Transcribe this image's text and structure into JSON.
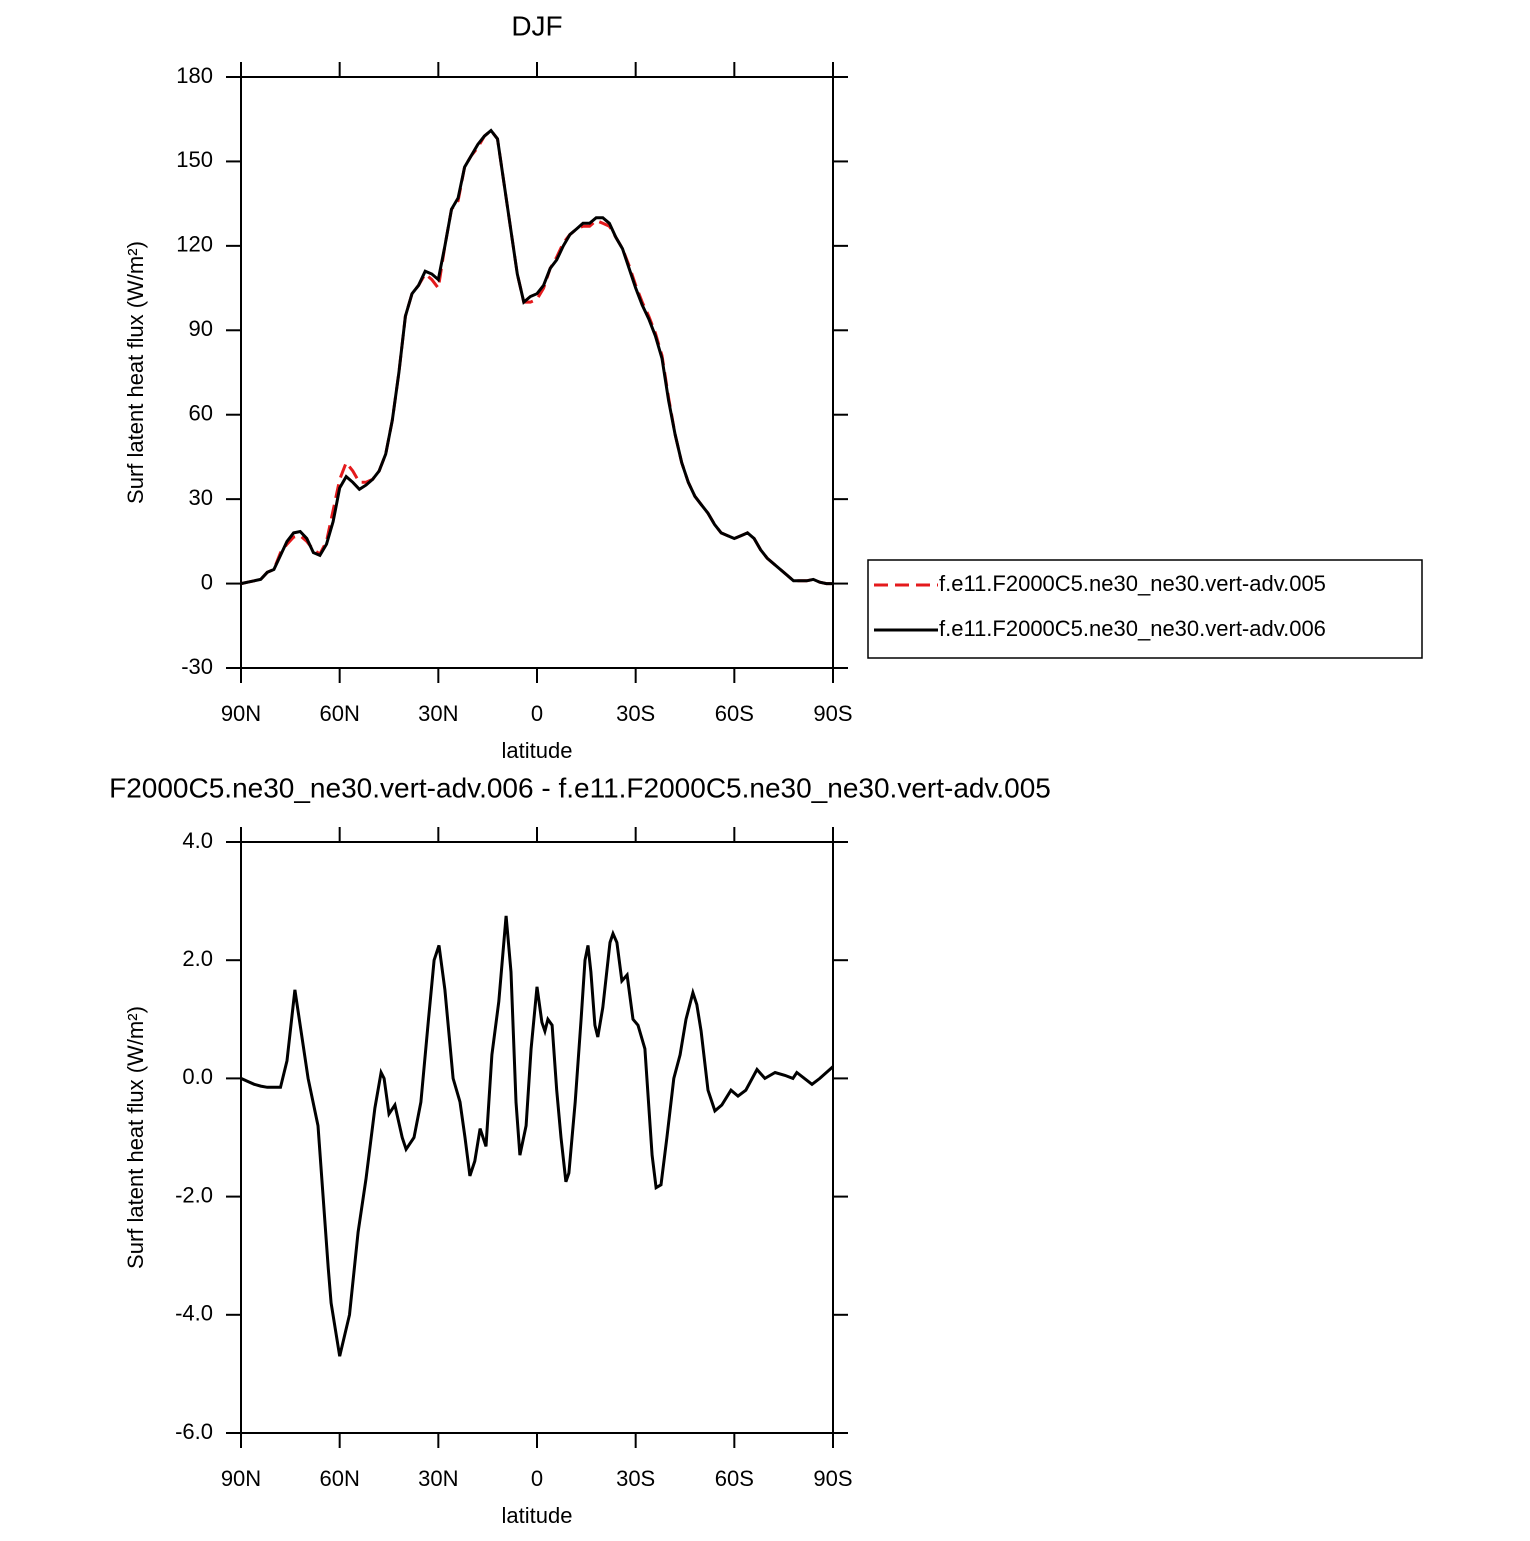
{
  "chart_data": [
    {
      "type": "line",
      "title": "DJF",
      "xlabel": "latitude",
      "ylabel": "Surf latent heat flux (W/m²)",
      "xlim": [
        90,
        -90
      ],
      "ylim": [
        -30,
        180
      ],
      "xticks": [
        {
          "value": 90,
          "label": "90N"
        },
        {
          "value": 60,
          "label": "60N"
        },
        {
          "value": 30,
          "label": "30N"
        },
        0,
        {
          "value": -30,
          "label": "30S"
        },
        {
          "value": -60,
          "label": "60S"
        },
        {
          "value": -90,
          "label": "90S"
        }
      ],
      "yticks": [
        -30,
        0,
        30,
        60,
        90,
        120,
        150,
        180
      ],
      "legend": "right",
      "x": [
        90,
        88,
        86,
        84,
        82,
        80,
        78,
        76,
        74,
        72,
        70,
        68,
        66,
        64,
        62,
        60,
        58,
        56,
        54,
        52,
        50,
        48,
        46,
        44,
        42,
        40,
        38,
        36,
        34,
        32,
        30,
        28,
        26,
        24,
        22,
        20,
        18,
        16,
        14,
        12,
        10,
        8,
        6,
        4,
        2,
        0,
        -2,
        -4,
        -6,
        -8,
        -10,
        -12,
        -14,
        -16,
        -18,
        -20,
        -22,
        -24,
        -26,
        -28,
        -30,
        -32,
        -34,
        -36,
        -38,
        -40,
        -42,
        -44,
        -46,
        -48,
        -50,
        -52,
        -54,
        -56,
        -58,
        -60,
        -62,
        -64,
        -66,
        -68,
        -70,
        -72,
        -74,
        -76,
        -78,
        -80,
        -82,
        -84,
        -86,
        -88,
        -90
      ],
      "series": [
        {
          "name": "f.e11.F2000C5.ne30_ne30.vert-adv.005",
          "color": "#e41a1c",
          "dashed": true,
          "values": [
            0,
            0.5,
            1,
            1.5,
            4,
            5,
            11,
            14,
            16.5,
            17,
            15,
            12,
            10.5,
            15,
            26,
            37,
            43,
            40,
            36,
            36,
            37,
            40,
            46,
            58,
            75,
            95,
            103,
            106,
            110,
            108,
            105,
            120,
            133,
            136,
            148,
            152,
            155,
            159,
            161,
            158,
            142,
            126,
            110,
            100,
            100,
            101,
            105,
            112,
            116,
            121,
            124,
            126,
            127,
            127,
            129,
            128,
            127,
            123,
            119,
            113,
            106,
            100,
            95,
            89,
            81,
            66,
            53,
            43,
            36,
            31,
            28,
            25,
            21,
            18,
            17,
            16,
            17,
            18,
            16,
            12,
            9,
            7,
            5,
            3,
            1,
            1,
            1,
            1.5,
            0.5,
            0,
            0
          ]
        },
        {
          "name": "f.e11.F2000C5.ne30_ne30.vert-adv.006",
          "color": "#000000",
          "dashed": false,
          "values": [
            0,
            0.5,
            1,
            1.5,
            4,
            5,
            10,
            15,
            18,
            18.5,
            16,
            11,
            10,
            14,
            22,
            34,
            38,
            36,
            33.5,
            35,
            37,
            40,
            46,
            58,
            75,
            95,
            103,
            106,
            111,
            110,
            108,
            120,
            133,
            137,
            148,
            152,
            156,
            159,
            161,
            158,
            142,
            126,
            110,
            100,
            102,
            103,
            106,
            112,
            115,
            120,
            124,
            126,
            128,
            128,
            130,
            130,
            128,
            123,
            119,
            112,
            105,
            99,
            94,
            88,
            80,
            65,
            53,
            43,
            36,
            31,
            28,
            25,
            21,
            18,
            17,
            16,
            17,
            18,
            16,
            12,
            9,
            7,
            5,
            3,
            1,
            1,
            1,
            1.5,
            0.5,
            0,
            0
          ]
        }
      ]
    },
    {
      "type": "line",
      "title": "F2000C5.ne30_ne30.vert-adv.006 - f.e11.F2000C5.ne30_ne30.vert-adv.005",
      "xlabel": "latitude",
      "ylabel": "Surf latent heat flux (W/m²)",
      "xlim": [
        90,
        -90
      ],
      "ylim": [
        -6,
        4
      ],
      "xticks": [
        {
          "value": 90,
          "label": "90N"
        },
        {
          "value": 60,
          "label": "60N"
        },
        {
          "value": 30,
          "label": "30N"
        },
        0,
        {
          "value": -30,
          "label": "30S"
        },
        {
          "value": -60,
          "label": "60S"
        },
        {
          "value": -90,
          "label": "90S"
        }
      ],
      "yticks": [
        {
          "value": -6,
          "label": "-6.0"
        },
        {
          "value": -4,
          "label": "-4.0"
        },
        {
          "value": -2,
          "label": "-2.0"
        },
        {
          "value": 0,
          "label": "0.0"
        },
        {
          "value": 2,
          "label": "2.0"
        },
        {
          "value": 4,
          "label": "4.0"
        }
      ],
      "x": [
        90,
        88,
        86,
        84,
        82,
        80,
        78,
        76,
        73.6,
        69.6,
        66.6,
        63.5,
        62.6,
        60,
        57,
        54.4,
        52,
        49.3,
        47.4,
        46.5,
        45,
        43.2,
        41,
        39.8,
        37.4,
        35.3,
        33,
        31.3,
        29.8,
        28,
        25.5,
        23.4,
        21.9,
        20.4,
        18.9,
        17.3,
        15.5,
        13.7,
        11.6,
        9.4,
        7.9,
        6.4,
        5.2,
        3.3,
        1.8,
        0,
        -1.5,
        -2.4,
        -3.3,
        -4.6,
        -6,
        -7.3,
        -8.8,
        -9.7,
        -11.6,
        -13.4,
        -14.6,
        -15.5,
        -16.4,
        -17.6,
        -18.5,
        -20,
        -22.2,
        -23.1,
        -24.3,
        -25.8,
        -27.4,
        -29.2,
        -30.7,
        -32.8,
        -35,
        -36.2,
        -37.7,
        -39.5,
        -41.6,
        -43.5,
        -45.3,
        -47.4,
        -48.6,
        -49.9,
        -52,
        -54.1,
        -56.2,
        -59,
        -61.1,
        -63.5,
        -66.9,
        -69.3,
        -72.4,
        -75.4,
        -77.8,
        -79,
        -83.6,
        -86,
        -90
      ],
      "series": [
        {
          "color": "#000000",
          "dashed": false,
          "values": [
            0,
            -0.05,
            -0.1,
            -0.13,
            -0.15,
            -0.15,
            -0.15,
            0.3,
            1.5,
            0,
            -0.8,
            -3.2,
            -3.8,
            -4.7,
            -4,
            -2.6,
            -1.7,
            -0.5,
            0.1,
            0,
            -0.6,
            -0.45,
            -1,
            -1.2,
            -1,
            -0.4,
            1,
            2,
            2.25,
            1.5,
            0,
            -0.4,
            -1,
            -1.65,
            -1.4,
            -0.85,
            -1.15,
            0.4,
            1.3,
            2.75,
            1.8,
            -0.4,
            -1.3,
            -0.8,
            0.5,
            1.55,
            0.95,
            0.8,
            1,
            0.9,
            -0.2,
            -1,
            -1.75,
            -1.6,
            -0.4,
            1,
            2,
            2.25,
            1.8,
            0.9,
            0.7,
            1.2,
            2.3,
            2.45,
            2.3,
            1.65,
            1.75,
            1,
            0.9,
            0.5,
            -1.3,
            -1.85,
            -1.8,
            -1,
            0,
            0.4,
            1,
            1.45,
            1.25,
            0.8,
            -0.2,
            -0.55,
            -0.45,
            -0.2,
            -0.3,
            -0.2,
            0.15,
            0,
            0.1,
            0.05,
            0,
            0.1,
            -0.1,
            0,
            0.2
          ]
        }
      ]
    }
  ]
}
